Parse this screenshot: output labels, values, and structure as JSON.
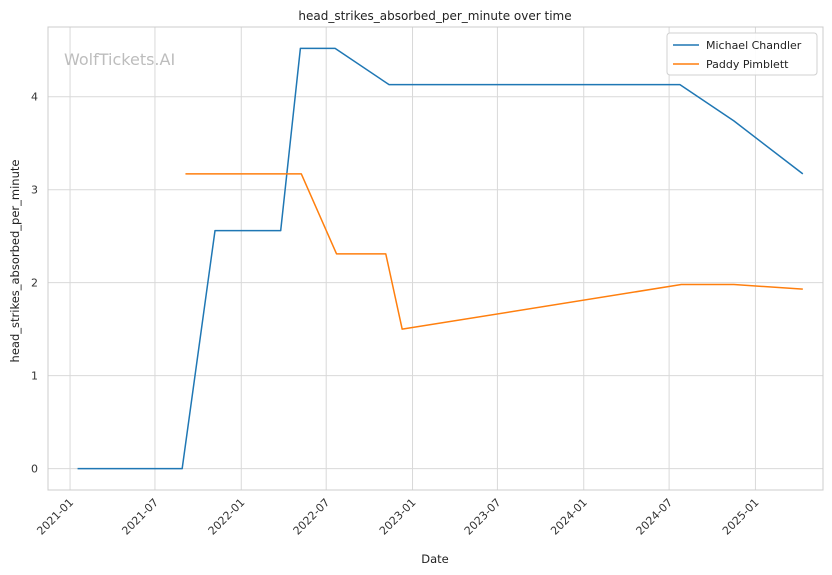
{
  "chart_data": {
    "type": "line",
    "title": "head_strikes_absorbed_per_minute over time",
    "xlabel": "Date",
    "ylabel": "head_strikes_absorbed_per_minute",
    "watermark": "WolfTickets.AI",
    "x_type": "date",
    "xlim": [
      "2020-11-15",
      "2025-05-25"
    ],
    "ylim": [
      -0.23,
      4.75
    ],
    "x_ticks": [
      "2021-01",
      "2021-07",
      "2022-01",
      "2022-07",
      "2023-01",
      "2023-07",
      "2024-01",
      "2024-07",
      "2025-01"
    ],
    "y_ticks": [
      0,
      1,
      2,
      3,
      4
    ],
    "grid": true,
    "legend_position": "top-right",
    "series": [
      {
        "name": "Michael Chandler",
        "color": "#1f77b4",
        "points": [
          {
            "x": "2021-01-17",
            "y": 0
          },
          {
            "x": "2021-08-28",
            "y": 0
          },
          {
            "x": "2021-11-06",
            "y": 2.56
          },
          {
            "x": "2022-03-26",
            "y": 2.56
          },
          {
            "x": "2022-05-07",
            "y": 4.52
          },
          {
            "x": "2022-07-20",
            "y": 4.52
          },
          {
            "x": "2022-11-12",
            "y": 4.13
          },
          {
            "x": "2024-07-24",
            "y": 4.13
          },
          {
            "x": "2024-11-16",
            "y": 3.74
          },
          {
            "x": "2025-04-12",
            "y": 3.17
          }
        ]
      },
      {
        "name": "Paddy Pimblett",
        "color": "#ff7f0e",
        "points": [
          {
            "x": "2021-09-04",
            "y": 3.17
          },
          {
            "x": "2022-05-09",
            "y": 3.17
          },
          {
            "x": "2022-07-23",
            "y": 2.31
          },
          {
            "x": "2022-11-05",
            "y": 2.31
          },
          {
            "x": "2022-12-10",
            "y": 1.5
          },
          {
            "x": "2024-07-27",
            "y": 1.98
          },
          {
            "x": "2024-11-16",
            "y": 1.98
          },
          {
            "x": "2025-04-12",
            "y": 1.93
          }
        ]
      }
    ]
  }
}
